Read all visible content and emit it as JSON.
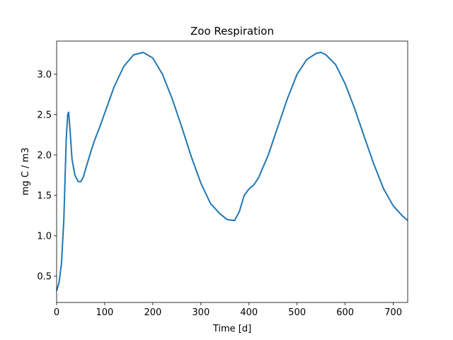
{
  "chart_data": {
    "type": "line",
    "title": "Zoo Respiration",
    "x_label": "Time [d]",
    "y_label": "mg C / m3",
    "x": [
      0,
      5,
      10,
      15,
      18,
      20,
      23,
      25,
      28,
      32,
      38,
      45,
      50,
      55,
      60,
      70,
      80,
      90,
      100,
      120,
      140,
      160,
      180,
      200,
      220,
      240,
      260,
      280,
      300,
      320,
      340,
      355,
      370,
      380,
      390,
      400,
      410,
      420,
      440,
      460,
      480,
      500,
      520,
      540,
      550,
      560,
      580,
      600,
      620,
      640,
      660,
      680,
      700,
      720,
      730
    ],
    "series": [
      {
        "name": "Zoo Respiration",
        "color": "#1f77b4",
        "values": [
          0.32,
          0.42,
          0.65,
          1.2,
          1.8,
          2.2,
          2.5,
          2.53,
          2.3,
          1.95,
          1.75,
          1.67,
          1.67,
          1.72,
          1.82,
          2.02,
          2.2,
          2.35,
          2.52,
          2.85,
          3.1,
          3.24,
          3.27,
          3.2,
          3.0,
          2.7,
          2.35,
          1.98,
          1.65,
          1.4,
          1.27,
          1.2,
          1.19,
          1.3,
          1.5,
          1.58,
          1.63,
          1.72,
          2.0,
          2.35,
          2.7,
          3.0,
          3.18,
          3.26,
          3.27,
          3.24,
          3.12,
          2.88,
          2.57,
          2.22,
          1.88,
          1.58,
          1.37,
          1.24,
          1.19
        ]
      }
    ],
    "xlim": [
      0,
      730
    ],
    "ylim": [
      0.175,
      3.41
    ],
    "xticks": [
      0,
      100,
      200,
      300,
      400,
      500,
      600,
      700
    ],
    "yticks": [
      0.5,
      {
        "value": 1,
        "label": "1.0"
      },
      1.5,
      {
        "value": 2,
        "label": "2.0"
      },
      2.5,
      {
        "value": 3,
        "label": "3.0"
      }
    ],
    "grid": false
  }
}
